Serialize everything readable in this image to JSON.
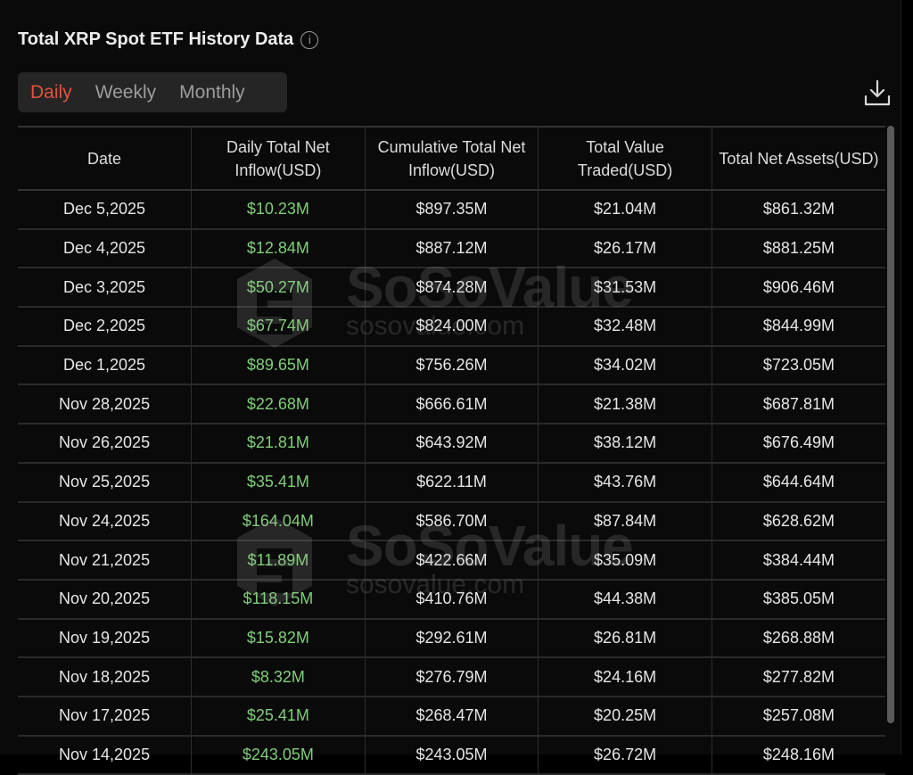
{
  "title": "Total XRP Spot ETF History Data",
  "icons": {
    "info": "info-icon",
    "download": "download-icon"
  },
  "tabs": [
    {
      "label": "Daily",
      "active": true
    },
    {
      "label": "Weekly",
      "active": false
    },
    {
      "label": "Monthly",
      "active": false
    }
  ],
  "colors": {
    "active_tab": "#e0533d",
    "positive": "#7fcf78",
    "background": "#0a0a0a"
  },
  "watermark": {
    "brand": "SoSoValue",
    "url": "sosovalue.com"
  },
  "table": {
    "headers": [
      "Date",
      "Daily Total Net Inflow(USD)",
      "Cumulative Total Net Inflow(USD)",
      "Total Value Traded(USD)",
      "Total Net Assets(USD)"
    ],
    "rows": [
      [
        "Dec 5,2025",
        "$10.23M",
        "$897.35M",
        "$21.04M",
        "$861.32M"
      ],
      [
        "Dec 4,2025",
        "$12.84M",
        "$887.12M",
        "$26.17M",
        "$881.25M"
      ],
      [
        "Dec 3,2025",
        "$50.27M",
        "$874.28M",
        "$31.53M",
        "$906.46M"
      ],
      [
        "Dec 2,2025",
        "$67.74M",
        "$824.00M",
        "$32.48M",
        "$844.99M"
      ],
      [
        "Dec 1,2025",
        "$89.65M",
        "$756.26M",
        "$34.02M",
        "$723.05M"
      ],
      [
        "Nov 28,2025",
        "$22.68M",
        "$666.61M",
        "$21.38M",
        "$687.81M"
      ],
      [
        "Nov 26,2025",
        "$21.81M",
        "$643.92M",
        "$38.12M",
        "$676.49M"
      ],
      [
        "Nov 25,2025",
        "$35.41M",
        "$622.11M",
        "$43.76M",
        "$644.64M"
      ],
      [
        "Nov 24,2025",
        "$164.04M",
        "$586.70M",
        "$87.84M",
        "$628.62M"
      ],
      [
        "Nov 21,2025",
        "$11.89M",
        "$422.66M",
        "$35.09M",
        "$384.44M"
      ],
      [
        "Nov 20,2025",
        "$118.15M",
        "$410.76M",
        "$44.38M",
        "$385.05M"
      ],
      [
        "Nov 19,2025",
        "$15.82M",
        "$292.61M",
        "$26.81M",
        "$268.88M"
      ],
      [
        "Nov 18,2025",
        "$8.32M",
        "$276.79M",
        "$24.16M",
        "$277.82M"
      ],
      [
        "Nov 17,2025",
        "$25.41M",
        "$268.47M",
        "$20.25M",
        "$257.08M"
      ],
      [
        "Nov 14,2025",
        "$243.05M",
        "$243.05M",
        "$26.72M",
        "$248.16M"
      ]
    ]
  }
}
